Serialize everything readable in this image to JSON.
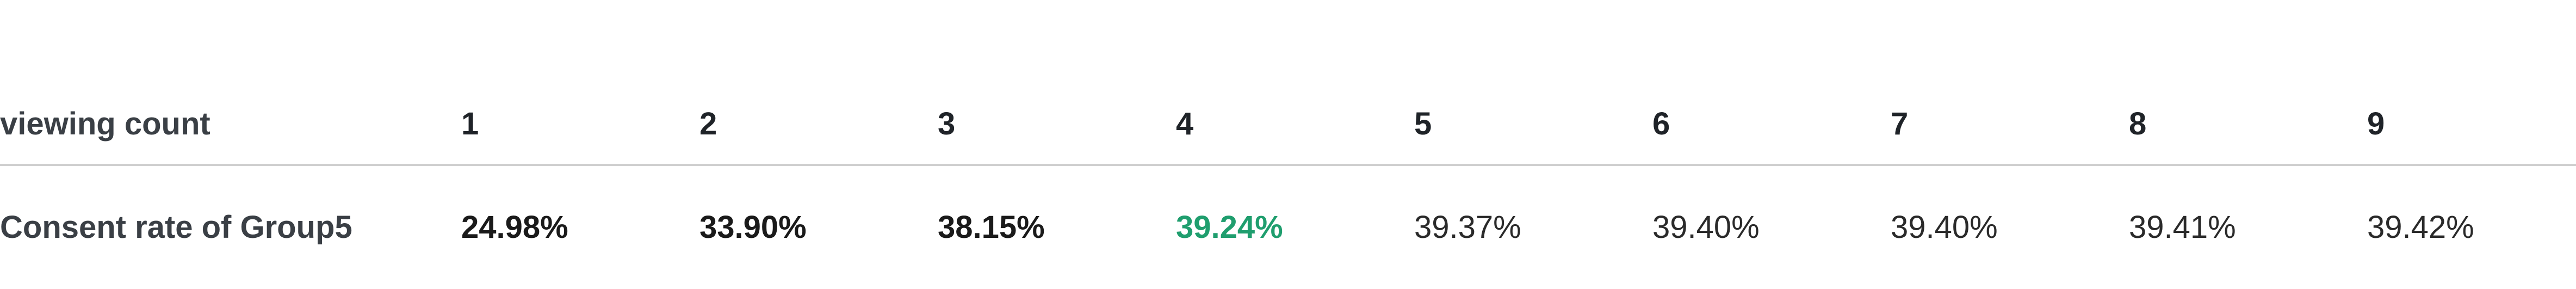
{
  "table": {
    "header": {
      "label": "viewing count",
      "counts": [
        "1",
        "2",
        "3",
        "4",
        "5",
        "6",
        "7",
        "8",
        "9"
      ]
    },
    "row": {
      "label": "Consent rate of Group5",
      "values": [
        "24.98%",
        "33.90%",
        "38.15%",
        "39.24%",
        "39.37%",
        "39.40%",
        "39.40%",
        "39.41%",
        "39.42%"
      ]
    },
    "highlight_color": "#1f9e6e"
  }
}
